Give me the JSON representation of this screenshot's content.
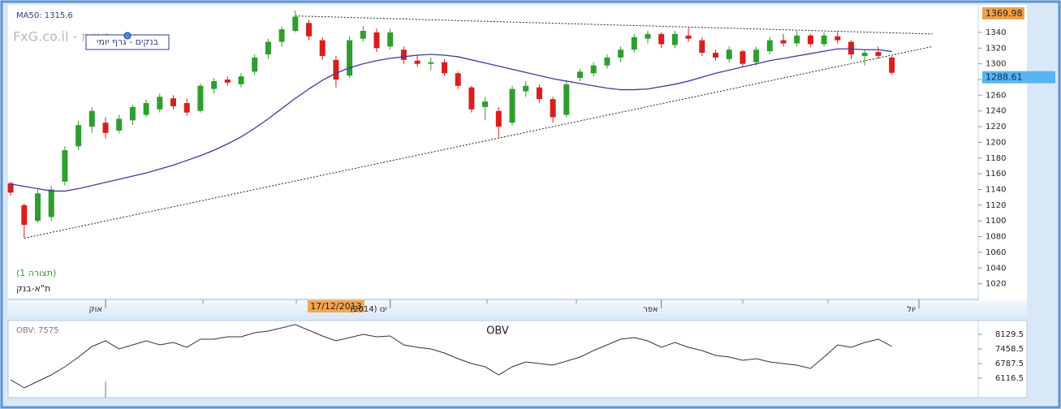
{
  "chart_data": [
    {
      "type": "candlestick",
      "indicator_label": "MA50: 1315.6",
      "watermark": "FxG.co.il - מניות",
      "chart_name": "בנקים - גרף יומי",
      "pattern_label": "(תצורה 1)",
      "symbol": "ת\"א-בנק",
      "categories": [
        null,
        null,
        null,
        null,
        null,
        null,
        null,
        "אוק",
        null,
        null,
        null,
        null,
        null,
        null,
        null,
        null,
        null,
        null,
        null,
        null,
        null,
        null,
        null,
        null,
        "17/12/2013",
        null,
        null,
        null,
        "ינו (2014)",
        null,
        null,
        null,
        null,
        null,
        null,
        null,
        null,
        null,
        null,
        null,
        null,
        null,
        null,
        null,
        null,
        null,
        null,
        null,
        "אפר",
        null,
        null,
        null,
        null,
        null,
        null,
        null,
        null,
        null,
        null,
        null,
        null,
        null,
        null,
        null,
        null,
        null,
        null,
        "יול"
      ],
      "highlighted_index": 24,
      "open": [
        1148,
        1120,
        1100,
        1105,
        1150,
        1195,
        1220,
        1225,
        1215,
        1228,
        1235,
        1242,
        1256,
        1250,
        1240,
        1268,
        1280,
        1274,
        1290,
        1312,
        1328,
        1342,
        1352,
        1330,
        1305,
        1285,
        1332,
        1340,
        1322,
        1318,
        1304,
        1300,
        1302,
        1288,
        1270,
        1245,
        1240,
        1225,
        1265,
        1270,
        1255,
        1235,
        1282,
        1288,
        1298,
        1308,
        1318,
        1332,
        1338,
        1324,
        1336,
        1330,
        1314,
        1306,
        1316,
        1302,
        1316,
        1330,
        1326,
        1336,
        1325,
        1335,
        1328,
        1310,
        1315,
        1308,
        null,
        null
      ],
      "high": [
        1150,
        1122,
        1140,
        1145,
        1195,
        1228,
        1245,
        1232,
        1235,
        1248,
        1255,
        1262,
        1260,
        1256,
        1275,
        1282,
        1284,
        1288,
        1312,
        1332,
        1348,
        1368,
        1356,
        1334,
        1310,
        1335,
        1348,
        1345,
        1345,
        1322,
        1312,
        1308,
        1306,
        1290,
        1272,
        1258,
        1245,
        1272,
        1278,
        1274,
        1258,
        1278,
        1294,
        1302,
        1312,
        1322,
        1338,
        1342,
        1340,
        1342,
        1346,
        1334,
        1318,
        1322,
        1318,
        1322,
        1334,
        1338,
        1342,
        1338,
        1340,
        1342,
        1330,
        1318,
        1322,
        1310,
        null,
        null
      ],
      "low": [
        1132,
        1078,
        1098,
        1100,
        1145,
        1190,
        1212,
        1205,
        1212,
        1222,
        1232,
        1238,
        1242,
        1234,
        1238,
        1262,
        1272,
        1270,
        1286,
        1306,
        1322,
        1340,
        1330,
        1305,
        1270,
        1282,
        1328,
        1315,
        1318,
        1300,
        1296,
        1292,
        1285,
        1268,
        1238,
        1228,
        1205,
        1222,
        1258,
        1250,
        1225,
        1232,
        1278,
        1284,
        1294,
        1302,
        1314,
        1326,
        1320,
        1320,
        1328,
        1310,
        1304,
        1302,
        1296,
        1298,
        1312,
        1322,
        1322,
        1322,
        1322,
        1326,
        1306,
        1298,
        1306,
        1286,
        null,
        null
      ],
      "close": [
        1136,
        1095,
        1135,
        1140,
        1190,
        1222,
        1240,
        1212,
        1230,
        1245,
        1250,
        1258,
        1246,
        1238,
        1272,
        1278,
        1276,
        1284,
        1308,
        1328,
        1344,
        1360,
        1335,
        1310,
        1280,
        1330,
        1342,
        1320,
        1340,
        1305,
        1300,
        1302,
        1288,
        1272,
        1242,
        1252,
        1220,
        1268,
        1272,
        1255,
        1232,
        1274,
        1290,
        1298,
        1308,
        1318,
        1334,
        1338,
        1325,
        1338,
        1332,
        1314,
        1308,
        1318,
        1300,
        1318,
        1330,
        1326,
        1336,
        1325,
        1336,
        1330,
        1312,
        1314,
        1310,
        1288.61,
        null,
        null
      ],
      "up_color": "#2e9e2e",
      "down_color": "#d91e1e",
      "ma": {
        "color": "#3a3aa8",
        "values": [
          1147,
          1144,
          1141,
          1138,
          1138,
          1141,
          1145,
          1149,
          1153,
          1157,
          1161,
          1166,
          1171,
          1177,
          1183,
          1190,
          1198,
          1207,
          1218,
          1230,
          1243,
          1256,
          1268,
          1279,
          1288,
          1295,
          1300,
          1304,
          1307,
          1309,
          1311,
          1312,
          1311,
          1309,
          1305,
          1301,
          1297,
          1293,
          1289,
          1285,
          1281,
          1278,
          1275,
          1272,
          1269,
          1267,
          1267,
          1268,
          1271,
          1274,
          1278,
          1283,
          1288,
          1292,
          1296,
          1300,
          1304,
          1307,
          1310,
          1313,
          1316,
          1319,
          1319,
          1318,
          1318,
          1315.6,
          null,
          null
        ]
      },
      "trendlines": [
        {
          "from": [
            1,
            1078
          ],
          "to": [
            68,
            1322
          ]
        },
        {
          "from": [
            21,
            1361
          ],
          "to": [
            68,
            1338
          ]
        }
      ],
      "last_price": 1288.61,
      "max_price": 1369.98,
      "ylim": [
        1001,
        1373
      ],
      "yticks": [
        1020,
        1040,
        1060,
        1080,
        1100,
        1120,
        1140,
        1160,
        1180,
        1200,
        1220,
        1240,
        1260,
        1280,
        1300,
        1320,
        1340
      ]
    },
    {
      "type": "line",
      "title": "OBV",
      "indicator_label": "OBV: 7575",
      "color": "#333333",
      "values": [
        6042,
        5669,
        5967,
        6265,
        6638,
        7086,
        7570,
        7831,
        7459,
        7645,
        7831,
        7645,
        7757,
        7533,
        7906,
        7906,
        8018,
        8018,
        8204,
        8279,
        8428,
        8577,
        8316,
        8055,
        7831,
        7980,
        8130,
        8018,
        8055,
        7645,
        7533,
        7459,
        7272,
        7011,
        6788,
        6638,
        6265,
        6638,
        6862,
        6788,
        6713,
        6899,
        7086,
        7384,
        7645,
        7906,
        7980,
        7831,
        7533,
        7757,
        7533,
        7384,
        7160,
        7086,
        6936,
        7011,
        6862,
        6788,
        6713,
        6564,
        7086,
        7645,
        7533,
        7757,
        7906,
        7575,
        null,
        null
      ],
      "ylim": [
        5296,
        8688
      ],
      "yticks": [
        6116.5,
        6787.5,
        7458.5,
        8129.5
      ]
    }
  ]
}
